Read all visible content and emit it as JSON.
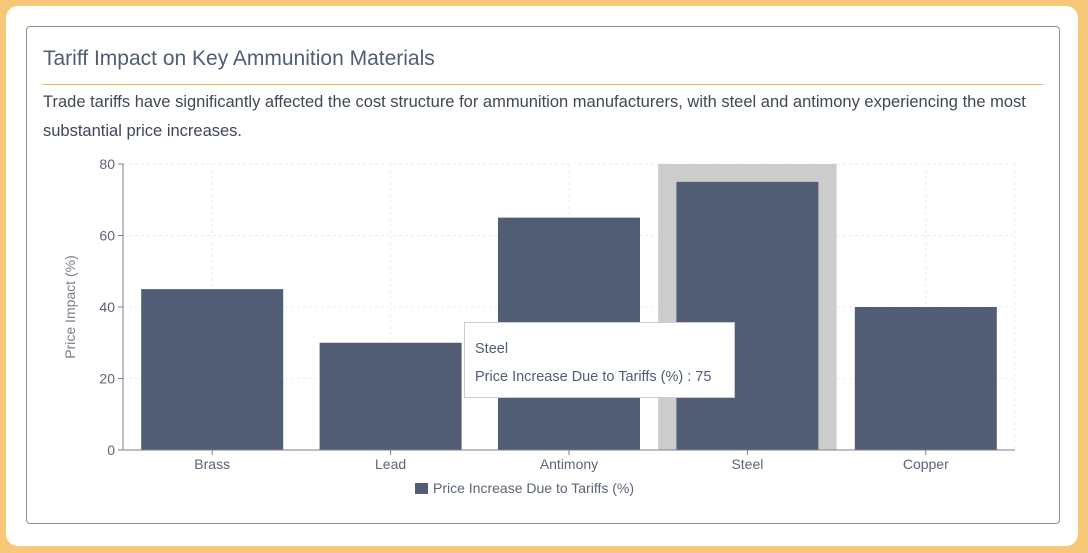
{
  "header": {
    "title": "Tariff Impact on Key Ammunition Materials",
    "description": "Trade tariffs have significantly affected the cost structure for ammunition manufacturers, with steel and antimony experiencing the most substantial price increases."
  },
  "colors": {
    "bar": "#505d74",
    "highlight": "#cccccc",
    "accent": "#e8b44a",
    "axis": "#7a7f8c",
    "grid": "#ececec"
  },
  "chart_data": {
    "type": "bar",
    "categories": [
      "Brass",
      "Lead",
      "Antimony",
      "Steel",
      "Copper"
    ],
    "series": [
      {
        "name": "Price Increase Due to Tariffs (%)",
        "values": [
          45,
          30,
          65,
          75,
          40
        ]
      }
    ],
    "ylabel": "Price Impact (%)",
    "xlabel": "",
    "ylim": [
      0,
      80
    ],
    "yticks": [
      0,
      20,
      40,
      60,
      80
    ],
    "grid": true,
    "legend_position": "bottom",
    "highlighted_category": "Steel"
  },
  "tooltip": {
    "title": "Steel",
    "line": "Price Increase Due to Tariffs (%) : 75"
  }
}
